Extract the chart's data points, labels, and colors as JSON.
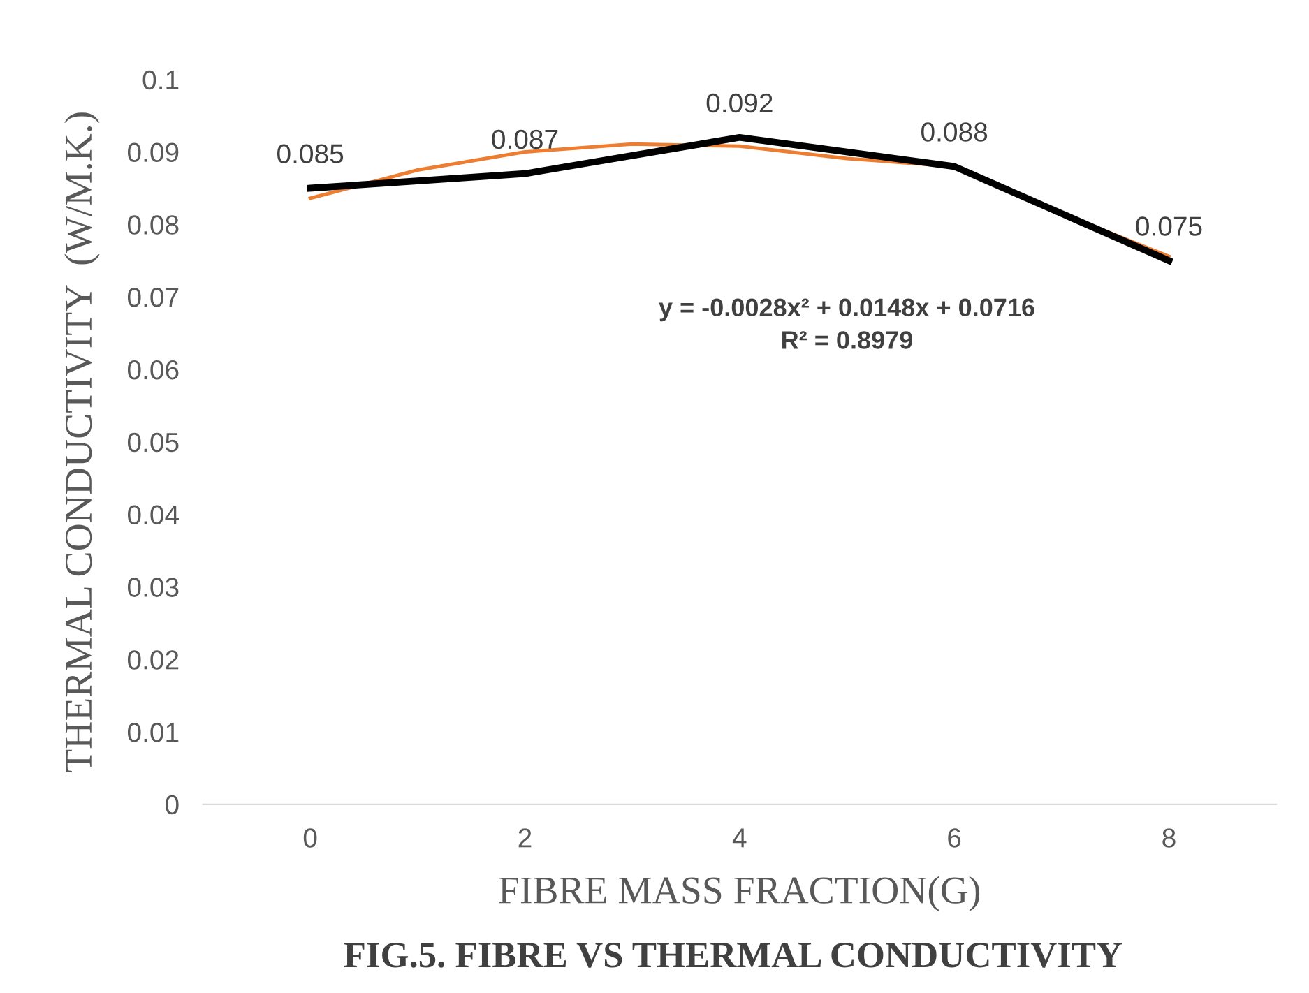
{
  "chart_data": {
    "type": "line",
    "xlabel": "FIBRE MASS FRACTION(G)",
    "ylabel": "THERMAL CONDUCTIVITY  (W/M.K.)",
    "x": [
      0,
      2,
      4,
      6,
      8
    ],
    "series": [
      {
        "color": "#000000",
        "values": [
          0.085,
          0.087,
          0.092,
          0.088,
          0.075
        ],
        "data_labels": true
      },
      {
        "color": "#ed7d31",
        "x": [
          0,
          1,
          2,
          3,
          4,
          5,
          6,
          7,
          8
        ],
        "values": [
          0.0836,
          0.0875,
          0.09,
          0.0911,
          0.0908,
          0.0891,
          0.088,
          0.0815,
          0.0756
        ]
      }
    ],
    "xlim": [
      -1,
      9
    ],
    "xticks": [
      0,
      2,
      4,
      6,
      8
    ],
    "ylim": [
      0,
      0.1
    ],
    "yticks": [
      0,
      0.01,
      0.02,
      0.03,
      0.04,
      0.05,
      0.06,
      0.07,
      0.08,
      0.09,
      0.1
    ],
    "grid": false,
    "legend": false,
    "marker": "none",
    "line_style": "solid",
    "annotations": [
      "y = -0.0028x² + 0.0148x + 0.0716\nR² = 0.8979",
      "FIG.5. FIBRE VS THERMAL CONDUCTIVITY"
    ]
  }
}
